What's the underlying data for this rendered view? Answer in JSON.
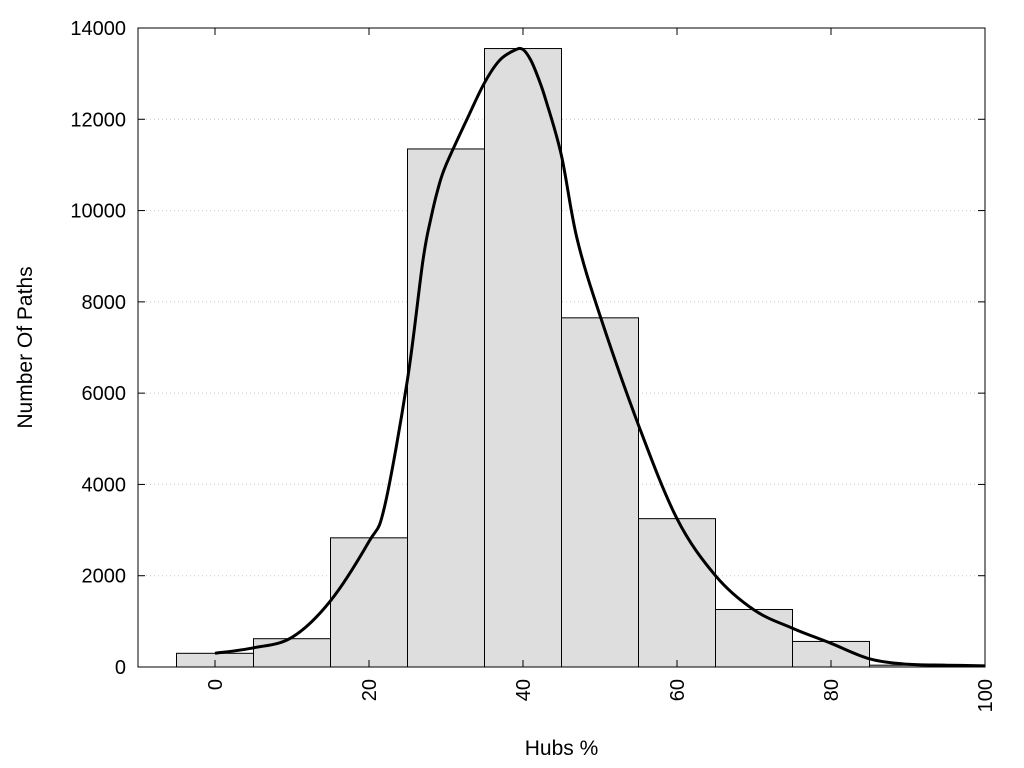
{
  "chart_data": {
    "type": "bar",
    "xlabel": "Hubs %",
    "ylabel": "Number Of Paths",
    "xlim": [
      -10,
      100
    ],
    "ylim": [
      0,
      14000
    ],
    "x_ticks": [
      0,
      20,
      40,
      60,
      80,
      100
    ],
    "y_ticks": [
      0,
      2000,
      4000,
      6000,
      8000,
      10000,
      12000,
      14000
    ],
    "grid": "horizontal-dotted",
    "legend": "none",
    "bar_color": "#dedede",
    "bar_width": 10,
    "bars": {
      "x": [
        0,
        10,
        20,
        30,
        40,
        50,
        60,
        70,
        80,
        90
      ],
      "values": [
        300,
        620,
        2830,
        11350,
        13550,
        7650,
        3250,
        1260,
        560,
        40
      ]
    },
    "curve": {
      "x": [
        0,
        5,
        10,
        15,
        20,
        22,
        25,
        27,
        28,
        29,
        30,
        33,
        35,
        37,
        39,
        40,
        41,
        42,
        43,
        45,
        47,
        50,
        55,
        60,
        65,
        70,
        75,
        80,
        85,
        90,
        95,
        100
      ],
      "values": [
        300,
        420,
        650,
        1450,
        2750,
        3500,
        6300,
        8900,
        9800,
        10500,
        11000,
        12100,
        12800,
        13300,
        13520,
        13530,
        13300,
        12900,
        12400,
        11200,
        9400,
        7700,
        5300,
        3250,
        2000,
        1250,
        850,
        520,
        180,
        60,
        40,
        25
      ]
    }
  }
}
